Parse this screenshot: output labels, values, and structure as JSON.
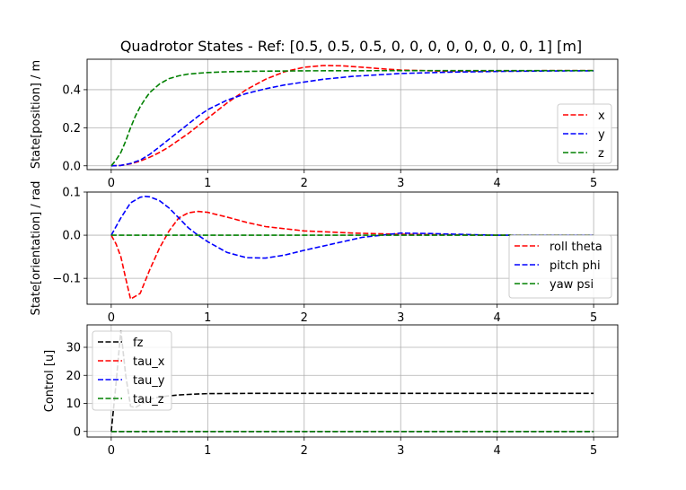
{
  "chart_data": [
    {
      "type": "line",
      "title": "Quadrotor States - Ref: [0.5, 0.5, 0.5, 0, 0, 0, 0, 0, 0, 0, 0, 1] [m]",
      "xlabel": "",
      "ylabel": "State[position] / m",
      "xlim": [
        -0.25,
        5.25
      ],
      "ylim": [
        -0.02,
        0.56
      ],
      "xticks": [
        "0",
        "1",
        "2",
        "3",
        "4",
        "5"
      ],
      "yticks": [
        "0.0",
        "0.2",
        "0.4"
      ],
      "grid": true,
      "legend_position": "right-lower",
      "series": [
        {
          "name": "x",
          "color": "#ff0000",
          "x": [
            0,
            0.1,
            0.2,
            0.3,
            0.4,
            0.5,
            0.6,
            0.7,
            0.8,
            0.9,
            1.0,
            1.2,
            1.4,
            1.6,
            1.8,
            2.0,
            2.2,
            2.4,
            2.6,
            2.8,
            3.0,
            3.5,
            4.0,
            4.5,
            5.0
          ],
          "y": [
            0.0,
            0.002,
            0.01,
            0.025,
            0.045,
            0.07,
            0.1,
            0.135,
            0.17,
            0.21,
            0.25,
            0.33,
            0.4,
            0.455,
            0.495,
            0.518,
            0.527,
            0.525,
            0.518,
            0.51,
            0.503,
            0.497,
            0.498,
            0.5,
            0.5
          ]
        },
        {
          "name": "y",
          "color": "#0000ff",
          "x": [
            0,
            0.1,
            0.2,
            0.3,
            0.4,
            0.5,
            0.6,
            0.7,
            0.8,
            0.9,
            1.0,
            1.2,
            1.4,
            1.6,
            1.8,
            2.0,
            2.2,
            2.5,
            3.0,
            3.5,
            4.0,
            4.5,
            5.0
          ],
          "y": [
            0.0,
            0.002,
            0.012,
            0.03,
            0.06,
            0.1,
            0.14,
            0.18,
            0.22,
            0.26,
            0.295,
            0.345,
            0.38,
            0.405,
            0.425,
            0.44,
            0.455,
            0.47,
            0.485,
            0.492,
            0.496,
            0.498,
            0.499
          ]
        },
        {
          "name": "z",
          "color": "#008000",
          "x": [
            0,
            0.05,
            0.1,
            0.15,
            0.2,
            0.25,
            0.3,
            0.35,
            0.4,
            0.5,
            0.6,
            0.7,
            0.8,
            1.0,
            1.2,
            1.5,
            2.0,
            3.0,
            4.0,
            5.0
          ],
          "y": [
            0.0,
            0.03,
            0.07,
            0.13,
            0.2,
            0.26,
            0.31,
            0.35,
            0.385,
            0.43,
            0.458,
            0.473,
            0.482,
            0.49,
            0.494,
            0.497,
            0.499,
            0.5,
            0.5,
            0.5
          ]
        }
      ]
    },
    {
      "type": "line",
      "title": "",
      "xlabel": "",
      "ylabel": "State[orientation] / rad",
      "xlim": [
        -0.25,
        5.25
      ],
      "ylim": [
        -0.16,
        0.1
      ],
      "xticks": [
        "0",
        "1",
        "2",
        "3",
        "4",
        "5"
      ],
      "yticks": [
        "−0.1",
        "0.0",
        "0.1"
      ],
      "grid": true,
      "legend_position": "right-lower",
      "series": [
        {
          "name": "roll theta",
          "color": "#ff0000",
          "x": [
            0,
            0.05,
            0.1,
            0.15,
            0.2,
            0.3,
            0.4,
            0.5,
            0.6,
            0.7,
            0.8,
            0.9,
            1.0,
            1.2,
            1.4,
            1.6,
            1.8,
            2.0,
            2.5,
            3.0,
            3.5,
            4.0,
            5.0
          ],
          "y": [
            0.0,
            -0.02,
            -0.05,
            -0.1,
            -0.148,
            -0.135,
            -0.08,
            -0.03,
            0.01,
            0.04,
            0.052,
            0.055,
            0.053,
            0.042,
            0.03,
            0.02,
            0.015,
            0.01,
            0.005,
            0.002,
            0.001,
            0.0,
            0.0
          ]
        },
        {
          "name": "pitch phi",
          "color": "#0000ff",
          "x": [
            0,
            0.1,
            0.2,
            0.3,
            0.35,
            0.4,
            0.5,
            0.6,
            0.7,
            0.8,
            0.9,
            1.0,
            1.2,
            1.4,
            1.6,
            1.8,
            2.0,
            2.3,
            2.6,
            3.0,
            3.3,
            3.6,
            4.0,
            4.5,
            5.0
          ],
          "y": [
            0.0,
            0.04,
            0.075,
            0.088,
            0.09,
            0.089,
            0.08,
            0.063,
            0.04,
            0.017,
            0.0,
            -0.015,
            -0.04,
            -0.052,
            -0.053,
            -0.046,
            -0.035,
            -0.02,
            -0.005,
            0.005,
            0.004,
            0.002,
            0.0,
            0.0,
            0.0
          ]
        },
        {
          "name": "yaw psi",
          "color": "#008000",
          "x": [
            0,
            5.0
          ],
          "y": [
            0.0,
            0.0
          ]
        }
      ]
    },
    {
      "type": "line",
      "title": "",
      "xlabel": "",
      "ylabel": "Control [u]",
      "xlim": [
        -0.25,
        5.25
      ],
      "ylim": [
        -2,
        38
      ],
      "xticks": [
        "0",
        "1",
        "2",
        "3",
        "4",
        "5"
      ],
      "yticks": [
        "0",
        "10",
        "20",
        "30"
      ],
      "grid": true,
      "legend_position": "upper-left",
      "series": [
        {
          "name": "fz",
          "color": "#000000",
          "x": [
            0,
            0.05,
            0.1,
            0.15,
            0.2,
            0.25,
            0.3,
            0.4,
            0.5,
            0.6,
            0.7,
            0.8,
            1.0,
            1.5,
            2.0,
            3.0,
            4.0,
            5.0
          ],
          "y": [
            0.0,
            17,
            36,
            20,
            9,
            8.5,
            9.5,
            11.5,
            12.3,
            12.7,
            13.0,
            13.2,
            13.5,
            13.6,
            13.6,
            13.6,
            13.6,
            13.6
          ]
        },
        {
          "name": "tau_x",
          "color": "#ff0000",
          "x": [
            0,
            5.0
          ],
          "y": [
            0.0,
            0.0
          ]
        },
        {
          "name": "tau_y",
          "color": "#0000ff",
          "x": [
            0,
            5.0
          ],
          "y": [
            0.0,
            0.0
          ]
        },
        {
          "name": "tau_z",
          "color": "#008000",
          "x": [
            0,
            5.0
          ],
          "y": [
            0.0,
            0.0
          ]
        }
      ]
    }
  ]
}
